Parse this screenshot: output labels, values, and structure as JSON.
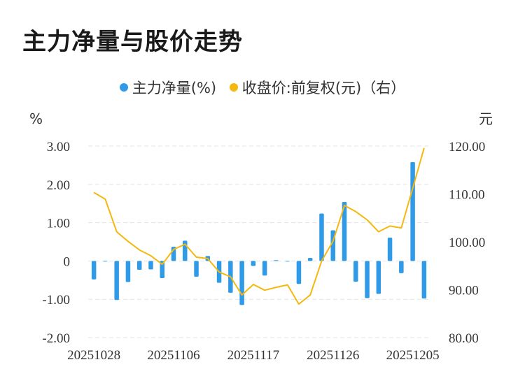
{
  "chart_data": {
    "type": "bar+line",
    "title": "主力净量与股价走势",
    "legend": [
      {
        "name": "主力净量(%)",
        "color": "#2f9be8",
        "marker": "dot"
      },
      {
        "name": "收盘价:前复权(元)（右）",
        "color": "#f5b80f",
        "marker": "dot"
      }
    ],
    "left_axis": {
      "unit": "%",
      "ticks": [
        "3.00",
        "2.00",
        "1.00",
        "0",
        "-1.00",
        "-2.00"
      ],
      "ylim": [
        -2,
        3
      ]
    },
    "right_axis": {
      "unit": "元",
      "ticks": [
        "120.00",
        "110.00",
        "100.00",
        "90.00",
        "80.00"
      ],
      "ylim": [
        80,
        120
      ]
    },
    "x_tick_labels": [
      "20251028",
      "20251106",
      "20251117",
      "20251126",
      "20251205"
    ],
    "x_tick_index": [
      0,
      7,
      14,
      21,
      28
    ],
    "n_points": 30,
    "series": [
      {
        "name": "主力净量(%)",
        "type": "bar",
        "color": "#2f9be8",
        "values": [
          -0.48,
          0,
          -1.02,
          -0.55,
          -0.23,
          -0.22,
          -0.45,
          0.37,
          0.53,
          -0.41,
          0.13,
          -0.57,
          -0.83,
          -1.15,
          -0.13,
          -0.38,
          0.02,
          -0.01,
          -0.6,
          0.08,
          1.24,
          0.8,
          1.54,
          -0.54,
          -0.97,
          -0.86,
          0.61,
          -0.32,
          2.58,
          -0.98
        ]
      },
      {
        "name": "收盘价:前复权(元)",
        "type": "line",
        "color": "#f5b80f",
        "values": [
          110.3,
          108.9,
          102.1,
          100.1,
          98.3,
          97.1,
          95.3,
          98.4,
          99.5,
          96.8,
          96.5,
          93.7,
          92.7,
          88.9,
          91.1,
          89.9,
          90.5,
          91.0,
          87.0,
          88.9,
          96.0,
          100.1,
          107.6,
          106.3,
          104.6,
          102.1,
          103.3,
          102.9,
          111.2,
          119.6
        ]
      }
    ]
  }
}
